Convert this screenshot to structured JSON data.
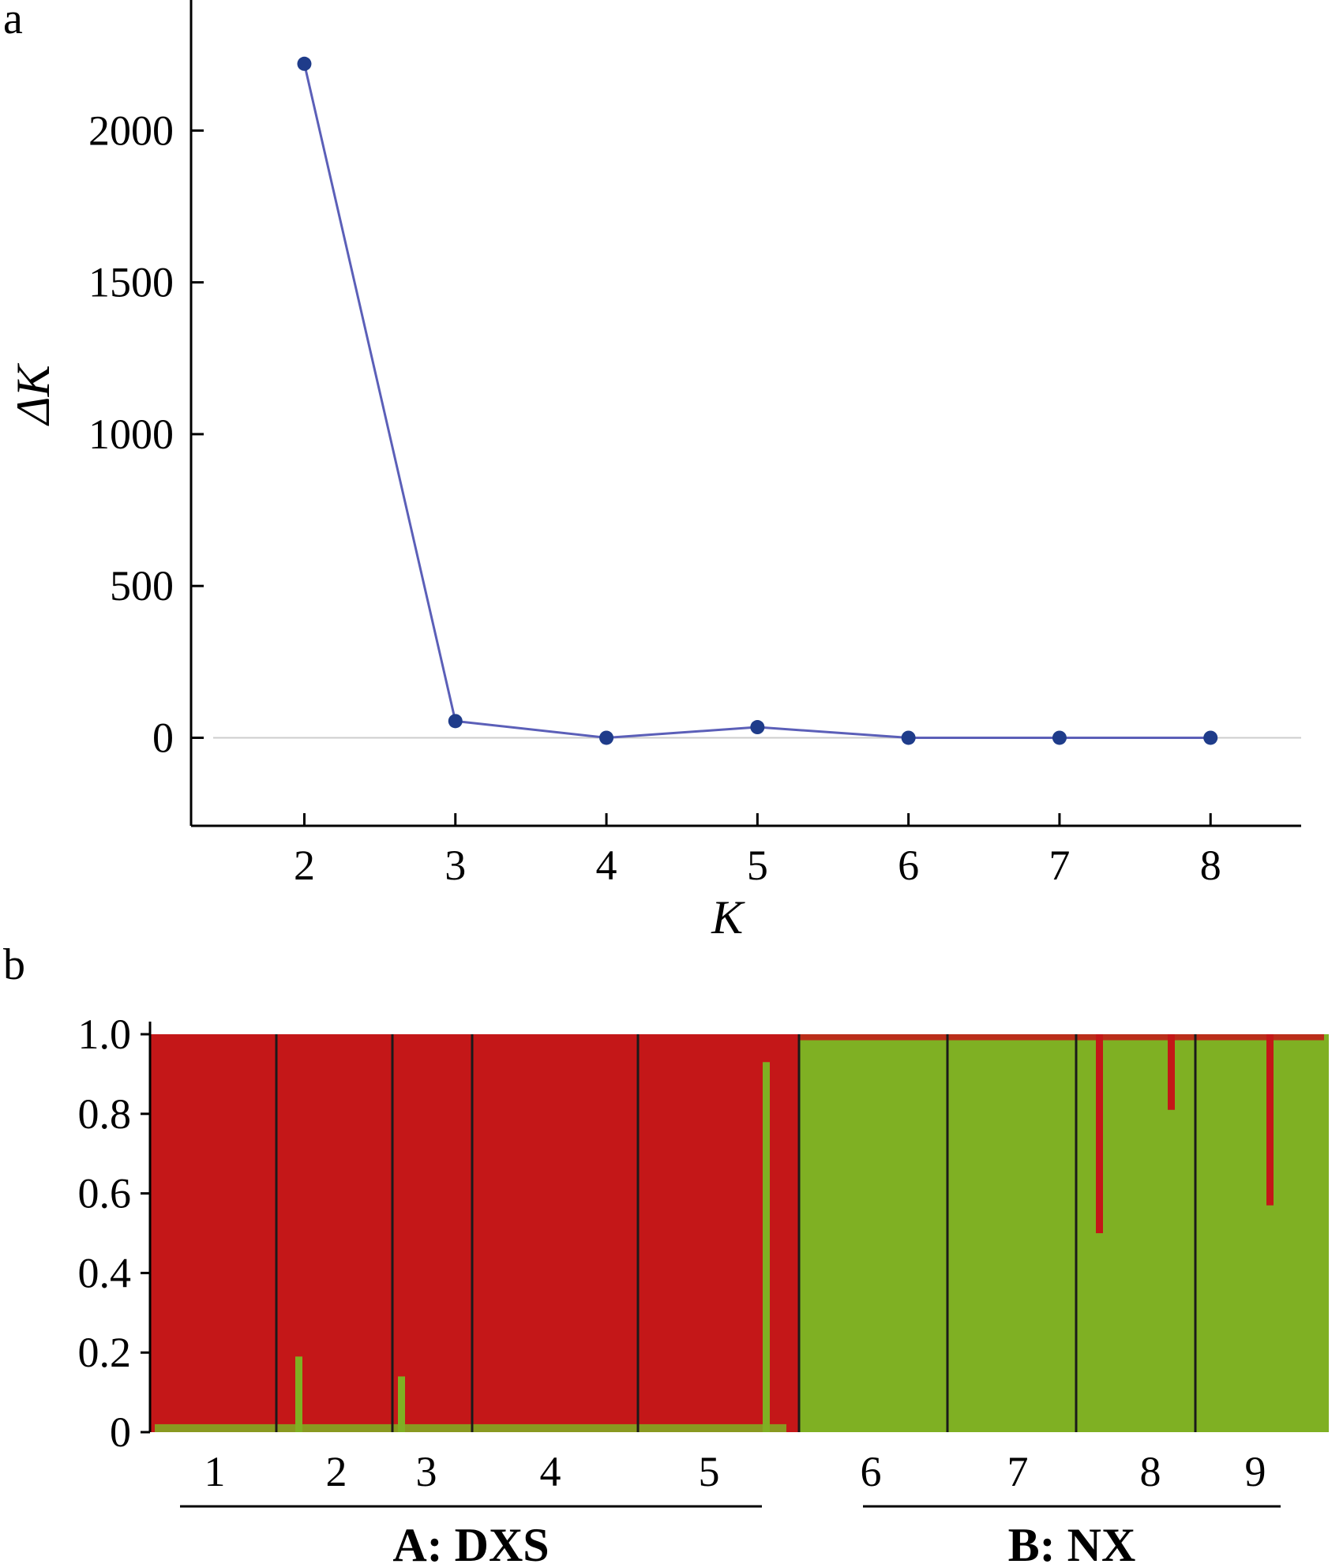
{
  "chart_data": [
    {
      "panel_label": "a",
      "type": "line",
      "xlabel": "K",
      "ylabel": "ΔK",
      "x": [
        2,
        3,
        4,
        5,
        6,
        7,
        8
      ],
      "series": [
        {
          "values": [
            2220,
            55,
            0,
            35,
            0,
            0,
            0
          ]
        }
      ],
      "xlim": [
        1.25,
        8.6
      ],
      "ylim": [
        -290,
        2430
      ],
      "x_ticks": [
        "2",
        "3",
        "4",
        "5",
        "6",
        "7",
        "8"
      ],
      "y_ticks": [
        0,
        500,
        1000,
        1500,
        2000
      ],
      "y_tick_labels": [
        "0",
        "500",
        "1000",
        "1500",
        "2000"
      ],
      "reference_line_y": 0,
      "colors": {
        "line": "#5b5fb8",
        "marker": "#1f3c8a",
        "reference_line": "#cccccc"
      }
    },
    {
      "panel_label": "b",
      "type": "bar",
      "subtype": "stacked-admixture",
      "ylim": [
        0,
        1
      ],
      "y_ticks": [
        0,
        0.2,
        0.4,
        0.6,
        0.8,
        1.0
      ],
      "y_tick_labels": [
        "0",
        "0.2",
        "0.4",
        "0.6",
        "0.8",
        "1.0"
      ],
      "populations": [
        {
          "label": "1",
          "cluster": "red"
        },
        {
          "label": "2",
          "cluster": "red"
        },
        {
          "label": "3",
          "cluster": "red"
        },
        {
          "label": "4",
          "cluster": "red"
        },
        {
          "label": "5",
          "cluster": "red"
        },
        {
          "label": "6",
          "cluster": "green"
        },
        {
          "label": "7",
          "cluster": "green"
        },
        {
          "label": "8",
          "cluster": "green"
        },
        {
          "label": "9",
          "cluster": "green"
        }
      ],
      "groups": [
        {
          "label": "A: DXS",
          "populations": [
            "1",
            "2",
            "3",
            "4",
            "5"
          ]
        },
        {
          "label": "B: NX",
          "populations": [
            "6",
            "7",
            "8",
            "9"
          ]
        }
      ],
      "notable_admixture": [
        {
          "population": "2",
          "minor_fraction": 0.19
        },
        {
          "population": "3",
          "minor_fraction": 0.14
        },
        {
          "population": "5",
          "minor_fraction": 0.93
        },
        {
          "population": "8",
          "minor_fraction": 0.5
        },
        {
          "population": "8",
          "minor_fraction": 0.19
        },
        {
          "population": "9",
          "minor_fraction": 0.43
        }
      ],
      "colors": {
        "red": "#c41718",
        "green": "#7fb023",
        "divider": "#1a1a1a"
      }
    }
  ]
}
